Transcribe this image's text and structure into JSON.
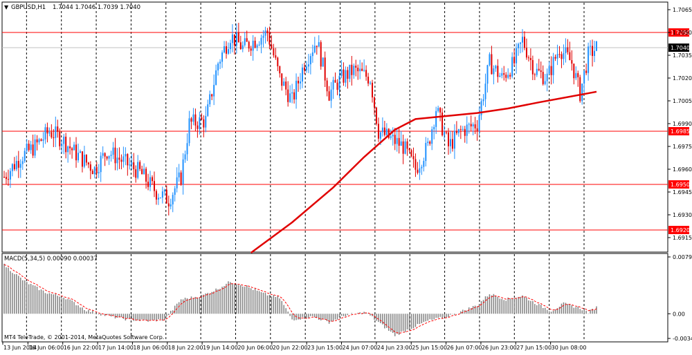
{
  "symbol_label": "GBPUSD,H1",
  "ohlc_label": "1.7044 1.7046 1.7039 1.7040",
  "indicator_label": "MACD(5,34,5) 0.00090 0.00037",
  "footer_label": "MT4 TeleTrade, © 2001-2014, MetaQuotes Software Corp.",
  "colors": {
    "background": "#ffffff",
    "bull_candle": "#1e90ff",
    "bear_candle": "#e00000",
    "level_line": "#ff0000",
    "moving_average": "#e00000",
    "macd_histogram": "#808080",
    "macd_signal": "#ff0000",
    "grid_line": "#000000",
    "axis_text": "#000000",
    "price_tag_current": "#000000"
  },
  "chart_data": [
    {
      "type": "candlestick",
      "title": "GBPUSD,H1",
      "timeframe": "H1",
      "ylim": [
        1.6905,
        1.7065
      ],
      "y_ticks": [
        "1.7065",
        "1.7050",
        "1.7035",
        "1.7020",
        "1.7005",
        "1.6990",
        "1.6975",
        "1.6960",
        "1.6945",
        "1.6930",
        "1.6915"
      ],
      "x_ticks": [
        "13 Jun 2014",
        "16 Jun 06:00",
        "16 Jun 22:00",
        "17 Jun 14:00",
        "18 Jun 06:00",
        "18 Jun 22:00",
        "19 Jun 14:00",
        "20 Jun 06:00",
        "20 Jun 22:00",
        "23 Jun 15:00",
        "24 Jun 07:00",
        "24 Jun 23:00",
        "25 Jun 15:00",
        "26 Jun 07:00",
        "26 Jun 23:00",
        "27 Jun 15:00",
        "30 Jun 08:00"
      ],
      "horizontal_levels": [
        {
          "label": "1.7050",
          "value": 1.705
        },
        {
          "label": "1.6985",
          "value": 1.6985
        },
        {
          "label": "1.6950",
          "value": 1.695
        },
        {
          "label": "1.6920",
          "value": 1.692
        }
      ],
      "current_price": {
        "label": "1.7040",
        "value": 1.704
      },
      "moving_average": [
        {
          "i": 120,
          "v": 1.6905
        },
        {
          "i": 140,
          "v": 1.6925
        },
        {
          "i": 160,
          "v": 1.6948
        },
        {
          "i": 175,
          "v": 1.6968
        },
        {
          "i": 190,
          "v": 1.6986
        },
        {
          "i": 200,
          "v": 1.6993
        },
        {
          "i": 215,
          "v": 1.6995
        },
        {
          "i": 230,
          "v": 1.6997
        },
        {
          "i": 245,
          "v": 1.7
        },
        {
          "i": 260,
          "v": 1.7004
        },
        {
          "i": 272,
          "v": 1.7007
        },
        {
          "i": 288,
          "v": 1.7011
        }
      ],
      "closes_anchor": [
        [
          0,
          1.6955
        ],
        [
          8,
          1.6968
        ],
        [
          15,
          1.6975
        ],
        [
          22,
          1.6985
        ],
        [
          28,
          1.698
        ],
        [
          35,
          1.697
        ],
        [
          44,
          1.696
        ],
        [
          50,
          1.6972
        ],
        [
          58,
          1.6965
        ],
        [
          66,
          1.6958
        ],
        [
          74,
          1.6945
        ],
        [
          80,
          1.694
        ],
        [
          86,
          1.6955
        ],
        [
          90,
          1.699
        ],
        [
          98,
          1.6992
        ],
        [
          104,
          1.703
        ],
        [
          110,
          1.7048
        ],
        [
          116,
          1.704
        ],
        [
          122,
          1.7045
        ],
        [
          128,
          1.705
        ],
        [
          134,
          1.702
        ],
        [
          140,
          1.7005
        ],
        [
          146,
          1.703
        ],
        [
          152,
          1.7045
        ],
        [
          158,
          1.701
        ],
        [
          164,
          1.702
        ],
        [
          170,
          1.7025
        ],
        [
          178,
          1.702
        ],
        [
          182,
          1.6985
        ],
        [
          188,
          1.698
        ],
        [
          194,
          1.6975
        ],
        [
          200,
          1.696
        ],
        [
          206,
          1.6975
        ],
        [
          210,
          1.7
        ],
        [
          216,
          1.6975
        ],
        [
          222,
          1.6985
        ],
        [
          230,
          1.699
        ],
        [
          236,
          1.703
        ],
        [
          242,
          1.702
        ],
        [
          248,
          1.703
        ],
        [
          252,
          1.7045
        ],
        [
          258,
          1.7025
        ],
        [
          264,
          1.702
        ],
        [
          270,
          1.704
        ],
        [
          276,
          1.703
        ],
        [
          280,
          1.701
        ],
        [
          284,
          1.7035
        ],
        [
          288,
          1.704
        ]
      ]
    },
    {
      "type": "histogram",
      "title": "MACD(5,34,5)",
      "values_label": "0.00090 0.00037",
      "ylim": [
        -0.00344,
        0.00792
      ],
      "y_ticks": [
        "0.00792",
        "0.00",
        "-0.00344"
      ],
      "histogram_anchor": [
        [
          0,
          0.0068
        ],
        [
          10,
          0.0045
        ],
        [
          20,
          0.003
        ],
        [
          30,
          0.0022
        ],
        [
          40,
          0.0005
        ],
        [
          50,
          -0.0003
        ],
        [
          60,
          -0.0008
        ],
        [
          70,
          -0.001
        ],
        [
          78,
          -0.0008
        ],
        [
          86,
          0.002
        ],
        [
          96,
          0.0025
        ],
        [
          104,
          0.0035
        ],
        [
          110,
          0.0045
        ],
        [
          118,
          0.0038
        ],
        [
          126,
          0.0028
        ],
        [
          134,
          0.0022
        ],
        [
          140,
          -0.0008
        ],
        [
          150,
          -0.0004
        ],
        [
          158,
          -0.0012
        ],
        [
          166,
          -0.0002
        ],
        [
          176,
          0.0002
        ],
        [
          182,
          -0.0012
        ],
        [
          190,
          -0.003
        ],
        [
          198,
          -0.002
        ],
        [
          206,
          -0.001
        ],
        [
          214,
          -0.0005
        ],
        [
          222,
          0.0003
        ],
        [
          230,
          0.0012
        ],
        [
          236,
          0.0028
        ],
        [
          244,
          0.002
        ],
        [
          252,
          0.0025
        ],
        [
          260,
          0.0012
        ],
        [
          266,
          0.0004
        ],
        [
          272,
          0.0014
        ],
        [
          280,
          0.0008
        ],
        [
          284,
          0.0002
        ],
        [
          288,
          0.0009
        ]
      ]
    }
  ]
}
